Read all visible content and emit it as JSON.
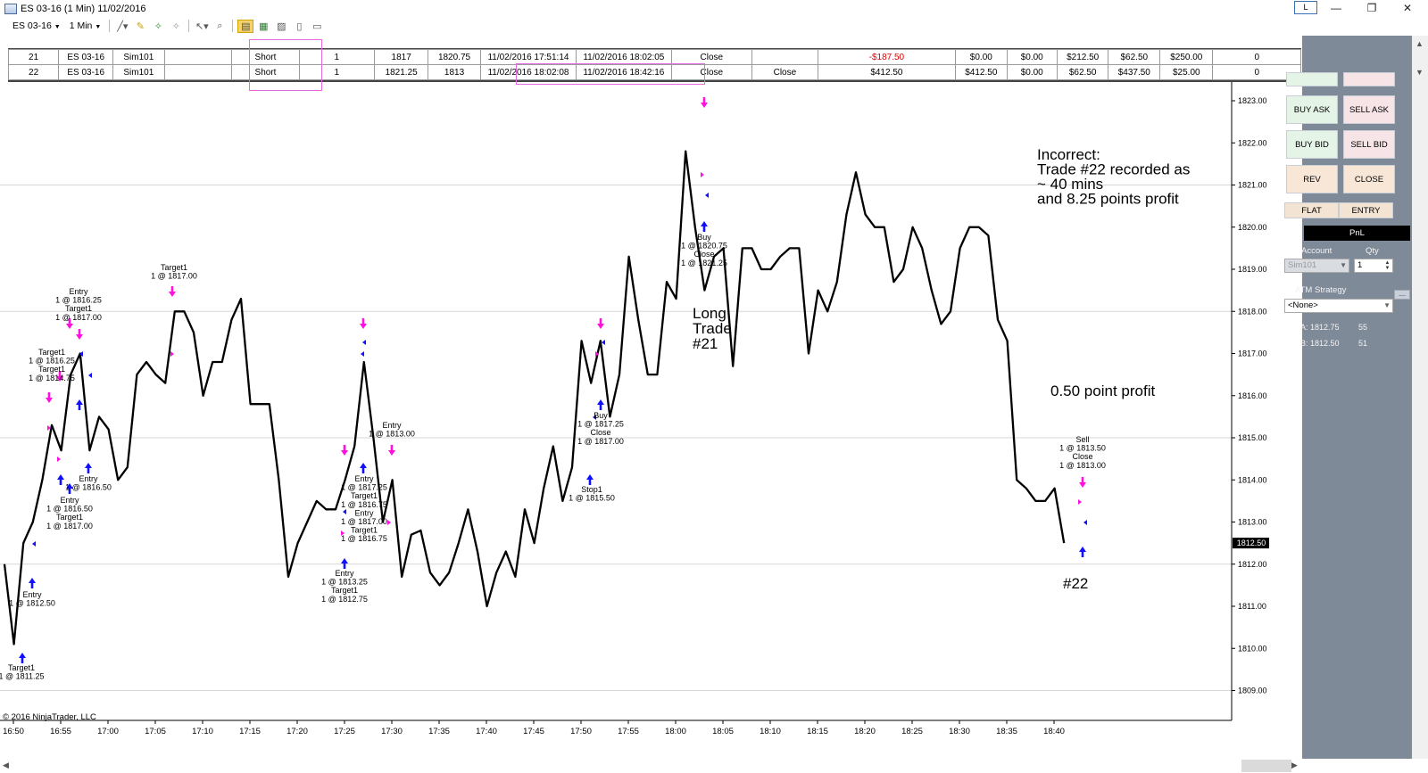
{
  "window": {
    "title": "ES 03-16 (1 Min)  11/02/2016",
    "layout_button": "L",
    "minimize": "—",
    "maximize": "❐",
    "close": "✕"
  },
  "toolbar": {
    "instrument": "ES 03-16",
    "interval": "1 Min"
  },
  "trades": {
    "rows": [
      [
        "21",
        "ES 03-16",
        "Sim101",
        "",
        "Short",
        "1",
        "1817",
        "1820.75",
        "11/02/2016 17:51:14",
        "11/02/2016 18:02:05",
        "Close",
        "",
        "-$187.50",
        "$0.00",
        "$0.00",
        "$212.50",
        "$62.50",
        "$250.00",
        "0"
      ],
      [
        "22",
        "ES 03-16",
        "Sim101",
        "",
        "Short",
        "1",
        "1821.25",
        "1813",
        "11/02/2016 18:02:08",
        "11/02/2016 18:42:16",
        "Close",
        "Close",
        "$412.50",
        "$412.50",
        "$0.00",
        "$62.50",
        "$437.50",
        "$25.00",
        "0"
      ]
    ]
  },
  "chart": {
    "copyright": "© 2016 NinjaTrader, LLC",
    "last_price": "1812.50",
    "price_ticks": [
      "1823.00",
      "1822.00",
      "1821.00",
      "1820.00",
      "1819.00",
      "1818.00",
      "1817.00",
      "1816.00",
      "1815.00",
      "1814.00",
      "1813.00",
      "1812.00",
      "1811.00",
      "1810.00",
      "1809.00"
    ],
    "time_ticks": [
      "16:50",
      "16:55",
      "17:00",
      "17:05",
      "17:10",
      "17:15",
      "17:20",
      "17:25",
      "17:30",
      "17:35",
      "17:40",
      "17:45",
      "17:50",
      "17:55",
      "18:00",
      "18:05",
      "18:10",
      "18:15",
      "18:20",
      "18:25",
      "18:30",
      "18:35",
      "18:40"
    ]
  },
  "annotations": {
    "incorrect": [
      "Incorrect:",
      "Trade #22 recorded as",
      "~ 40 mins",
      "and 8.25 points profit"
    ],
    "long_trade": [
      "Long",
      "Trade",
      "#21"
    ],
    "profit": "0.50 point profit",
    "trade22": "#22"
  },
  "chart_labels": [
    [
      "Target1",
      "1 @ 1811.25"
    ],
    [
      "Entry",
      "1 @ 1812.50"
    ],
    [
      "Target1",
      "1 @ 1816.25",
      "Target1",
      "1 @ 1814.75"
    ],
    [
      "Entry",
      "1 @ 1816.25",
      "Target1",
      "1 @ 1817.00"
    ],
    [
      "Entry",
      "1 @ 1816.50"
    ],
    [
      "Entry",
      "1 @ 1816.50",
      "Target1",
      "1 @ 1817.00"
    ],
    [
      "Target1",
      "1 @ 1817.00"
    ],
    [
      "Entry",
      "1 @ 1813.25",
      "Target1",
      "1 @ 1812.75"
    ],
    [
      "Entry",
      "1 @ 1817.25",
      "Target1",
      "1 @ 1816.75",
      "Entry",
      "1 @ 1817.00",
      "Target1",
      "1 @ 1816.75"
    ],
    [
      "Entry",
      "1 @ 1813.00"
    ],
    [
      "Stop1",
      "1 @ 1815.50"
    ],
    [
      "Buy",
      "1 @ 1817.25",
      "Close",
      "1 @ 1817.00"
    ],
    [
      "Buy",
      "1 @ 1820.75",
      "Close",
      "1 @ 1821.25"
    ],
    [
      "Sell",
      "1 @ 1813.50",
      "Close",
      "1 @ 1813.00"
    ]
  ],
  "price_series": [
    1812.0,
    1810.1,
    1812.5,
    1813.0,
    1814.0,
    1815.3,
    1814.7,
    1816.5,
    1817.0,
    1814.7,
    1815.5,
    1815.2,
    1814.0,
    1814.3,
    1816.5,
    1816.8,
    1816.5,
    1816.3,
    1818.0,
    1818.0,
    1817.5,
    1816.0,
    1816.8,
    1816.8,
    1817.8,
    1818.3,
    1815.8,
    1815.8,
    1815.8,
    1814.0,
    1811.7,
    1812.5,
    1813.0,
    1813.5,
    1813.3,
    1813.3,
    1814.0,
    1814.8,
    1816.8,
    1815.0,
    1813.0,
    1814.0,
    1811.7,
    1812.7,
    1812.8,
    1811.8,
    1811.5,
    1811.8,
    1812.5,
    1813.3,
    1812.3,
    1811.0,
    1811.8,
    1812.3,
    1811.7,
    1813.3,
    1812.5,
    1813.8,
    1814.8,
    1813.5,
    1814.3,
    1817.3,
    1816.3,
    1817.3,
    1815.5,
    1816.5,
    1819.3,
    1817.8,
    1816.5,
    1816.5,
    1818.7,
    1818.3,
    1821.8,
    1820.0,
    1818.5,
    1819.3,
    1819.5,
    1816.7,
    1819.5,
    1819.5,
    1819.0,
    1819.0,
    1819.3,
    1819.5,
    1819.5,
    1817.0,
    1818.5,
    1818.0,
    1818.7,
    1820.3,
    1821.3,
    1820.3,
    1820.0,
    1820.0,
    1818.7,
    1819.0,
    1820.0,
    1819.5,
    1818.5,
    1817.7,
    1818.0,
    1819.5,
    1820.0,
    1820.0,
    1819.8,
    1817.8,
    1817.3,
    1814.0,
    1813.8,
    1813.5,
    1813.5,
    1813.8,
    1812.5
  ],
  "trade_panel": {
    "buy_ask": "BUY ASK",
    "sell_ask": "SELL ASK",
    "buy_bid": "BUY BID",
    "sell_bid": "SELL BID",
    "rev": "REV",
    "close": "CLOSE",
    "flat": "FLAT",
    "entry": "ENTRY",
    "pnl": "PnL",
    "account_label": "Account",
    "qty_label": "Qty",
    "account_value": "Sim101",
    "qty_value": "1",
    "atm_label": "ATM Strategy",
    "atm_value": "<None>",
    "ask_label": "A: 1812.75",
    "ask_size": "55",
    "bid_label": "B: 1812.50",
    "bid_size": "51"
  },
  "colors": {
    "up_arrow": "#1010ff",
    "down_arrow": "#ff10e0",
    "panel_bg": "#7f8a99",
    "highlight_box": "#e46ae0",
    "loss_text": "#e00000"
  }
}
